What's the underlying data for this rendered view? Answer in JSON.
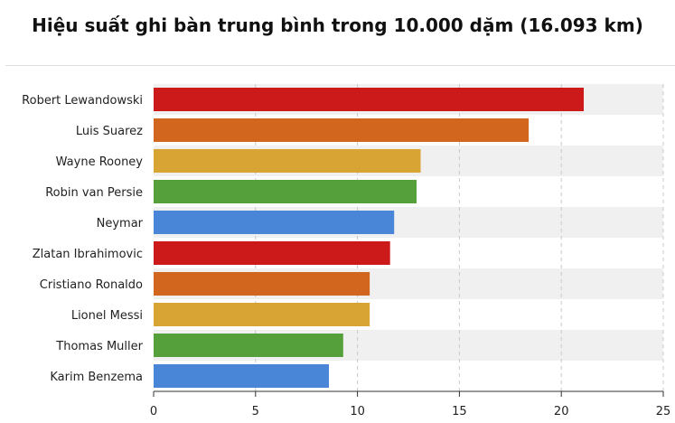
{
  "chart_data": {
    "type": "bar",
    "orientation": "horizontal",
    "title": "Hiệu suất ghi bàn trung bình trong 10.000 dặm (16.093 km)",
    "categories": [
      "Robert Lewandowski",
      "Luis Suarez",
      "Wayne Rooney",
      "Robin van Persie",
      "Neymar",
      "Zlatan Ibrahimovic",
      "Cristiano Ronaldo",
      "Lionel Messi",
      "Thomas Muller",
      "Karim Benzema"
    ],
    "values": [
      21.1,
      18.4,
      13.1,
      12.9,
      11.8,
      11.6,
      10.6,
      10.6,
      9.3,
      8.6
    ],
    "colors": [
      "#cc1a1a",
      "#d2661e",
      "#d8a535",
      "#56a03b",
      "#4a86d8",
      "#cc1a1a",
      "#d2661e",
      "#d8a535",
      "#56a03b",
      "#4a86d8"
    ],
    "xlim": [
      0,
      25
    ],
    "xticks": [
      "0",
      "5",
      "10",
      "15",
      "20",
      "25"
    ],
    "grid": true,
    "legend": "none"
  }
}
